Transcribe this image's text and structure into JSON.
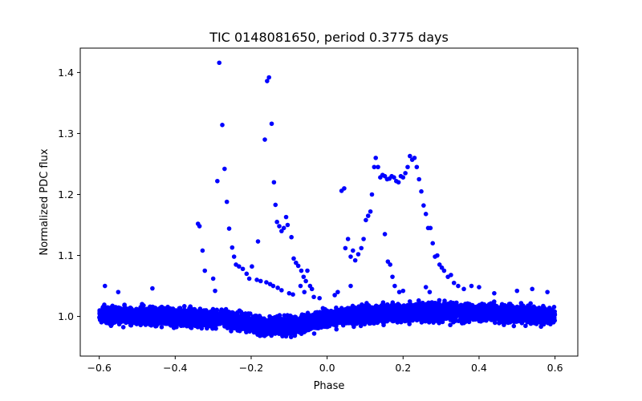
{
  "chart_data": {
    "type": "scatter",
    "title": "TIC 0148081650, period 0.3775 days",
    "xlabel": "Phase",
    "ylabel": "Normalized PDC flux",
    "xlim": [
      -0.65,
      0.66
    ],
    "ylim": [
      0.935,
      1.44
    ],
    "xticks": [
      -0.6,
      -0.4,
      -0.2,
      0.0,
      0.2,
      0.4,
      0.6
    ],
    "xtick_labels": [
      "−0.6",
      "−0.4",
      "−0.2",
      "0.0",
      "0.2",
      "0.4",
      "0.6"
    ],
    "yticks": [
      1.0,
      1.1,
      1.2,
      1.3,
      1.4
    ],
    "ytick_labels": [
      "1.0",
      "1.1",
      "1.2",
      "1.3",
      "1.4"
    ],
    "grid": false,
    "marker_color": "#0000ff",
    "baseline": {
      "x_range": [
        -0.6,
        0.6
      ],
      "profile": [
        [
          -0.6,
          1.003
        ],
        [
          -0.4,
          1.0
        ],
        [
          -0.25,
          0.995
        ],
        [
          -0.15,
          0.982
        ],
        [
          -0.08,
          0.985
        ],
        [
          0.0,
          0.997
        ],
        [
          0.1,
          1.003
        ],
        [
          0.3,
          1.008
        ],
        [
          0.45,
          1.006
        ],
        [
          0.6,
          1.0
        ]
      ],
      "spread": 0.022,
      "count": 7000
    },
    "flare_points": [
      [
        -0.284,
        1.416
      ],
      [
        -0.276,
        1.314
      ],
      [
        -0.289,
        1.222
      ],
      [
        -0.27,
        1.242
      ],
      [
        -0.264,
        1.188
      ],
      [
        -0.258,
        1.144
      ],
      [
        -0.25,
        1.113
      ],
      [
        -0.245,
        1.098
      ],
      [
        -0.24,
        1.085
      ],
      [
        -0.232,
        1.082
      ],
      [
        -0.222,
        1.078
      ],
      [
        -0.212,
        1.07
      ],
      [
        -0.205,
        1.062
      ],
      [
        -0.198,
        1.082
      ],
      [
        -0.185,
        1.06
      ],
      [
        -0.175,
        1.058
      ],
      [
        -0.182,
        1.123
      ],
      [
        -0.34,
        1.152
      ],
      [
        -0.336,
        1.148
      ],
      [
        -0.328,
        1.108
      ],
      [
        -0.322,
        1.075
      ],
      [
        -0.295,
        1.042
      ],
      [
        -0.3,
        1.062
      ],
      [
        -0.158,
        1.386
      ],
      [
        -0.153,
        1.392
      ],
      [
        -0.146,
        1.316
      ],
      [
        -0.164,
        1.29
      ],
      [
        -0.14,
        1.22
      ],
      [
        -0.136,
        1.183
      ],
      [
        -0.132,
        1.155
      ],
      [
        -0.126,
        1.148
      ],
      [
        -0.12,
        1.14
      ],
      [
        -0.114,
        1.145
      ],
      [
        -0.108,
        1.163
      ],
      [
        -0.104,
        1.15
      ],
      [
        -0.094,
        1.13
      ],
      [
        -0.088,
        1.095
      ],
      [
        -0.082,
        1.088
      ],
      [
        -0.076,
        1.083
      ],
      [
        -0.068,
        1.075
      ],
      [
        -0.062,
        1.065
      ],
      [
        -0.056,
        1.058
      ],
      [
        -0.052,
        1.075
      ],
      [
        -0.045,
        1.05
      ],
      [
        -0.04,
        1.045
      ],
      [
        -0.16,
        1.056
      ],
      [
        -0.15,
        1.053
      ],
      [
        -0.142,
        1.05
      ],
      [
        -0.13,
        1.047
      ],
      [
        -0.12,
        1.043
      ],
      [
        -0.1,
        1.038
      ],
      [
        -0.09,
        1.036
      ],
      [
        -0.07,
        1.05
      ],
      [
        -0.06,
        1.04
      ],
      [
        -0.035,
        1.032
      ],
      [
        -0.02,
        1.03
      ],
      [
        0.038,
        1.206
      ],
      [
        0.045,
        1.21
      ],
      [
        0.055,
        1.127
      ],
      [
        0.048,
        1.112
      ],
      [
        0.062,
        1.098
      ],
      [
        0.068,
        1.108
      ],
      [
        0.074,
        1.092
      ],
      [
        0.082,
        1.102
      ],
      [
        0.09,
        1.112
      ],
      [
        0.096,
        1.127
      ],
      [
        0.102,
        1.158
      ],
      [
        0.108,
        1.165
      ],
      [
        0.114,
        1.172
      ],
      [
        0.118,
        1.2
      ],
      [
        0.124,
        1.245
      ],
      [
        0.128,
        1.26
      ],
      [
        0.134,
        1.245
      ],
      [
        0.14,
        1.228
      ],
      [
        0.146,
        1.232
      ],
      [
        0.152,
        1.23
      ],
      [
        0.158,
        1.225
      ],
      [
        0.164,
        1.226
      ],
      [
        0.17,
        1.23
      ],
      [
        0.176,
        1.228
      ],
      [
        0.182,
        1.222
      ],
      [
        0.188,
        1.22
      ],
      [
        0.194,
        1.23
      ],
      [
        0.2,
        1.228
      ],
      [
        0.206,
        1.235
      ],
      [
        0.212,
        1.245
      ],
      [
        0.218,
        1.263
      ],
      [
        0.224,
        1.257
      ],
      [
        0.23,
        1.26
      ],
      [
        0.236,
        1.245
      ],
      [
        0.242,
        1.225
      ],
      [
        0.248,
        1.205
      ],
      [
        0.254,
        1.182
      ],
      [
        0.26,
        1.168
      ],
      [
        0.266,
        1.145
      ],
      [
        0.272,
        1.145
      ],
      [
        0.278,
        1.12
      ],
      [
        0.284,
        1.098
      ],
      [
        0.29,
        1.1
      ],
      [
        0.296,
        1.085
      ],
      [
        0.302,
        1.08
      ],
      [
        0.308,
        1.075
      ],
      [
        0.318,
        1.065
      ],
      [
        0.326,
        1.068
      ],
      [
        0.334,
        1.055
      ],
      [
        0.345,
        1.05
      ],
      [
        0.36,
        1.045
      ],
      [
        0.38,
        1.05
      ],
      [
        0.4,
        1.048
      ],
      [
        0.5,
        1.042
      ],
      [
        0.54,
        1.045
      ],
      [
        0.152,
        1.135
      ],
      [
        0.16,
        1.09
      ],
      [
        0.166,
        1.085
      ],
      [
        0.172,
        1.065
      ],
      [
        0.178,
        1.05
      ],
      [
        0.19,
        1.04
      ],
      [
        0.2,
        1.042
      ],
      [
        0.26,
        1.048
      ],
      [
        0.27,
        1.04
      ],
      [
        0.028,
        1.04
      ],
      [
        0.02,
        1.035
      ],
      [
        0.062,
        1.05
      ],
      [
        -0.46,
        1.046
      ],
      [
        -0.585,
        1.05
      ],
      [
        -0.55,
        1.04
      ],
      [
        0.58,
        1.04
      ],
      [
        0.44,
        1.038
      ]
    ]
  }
}
